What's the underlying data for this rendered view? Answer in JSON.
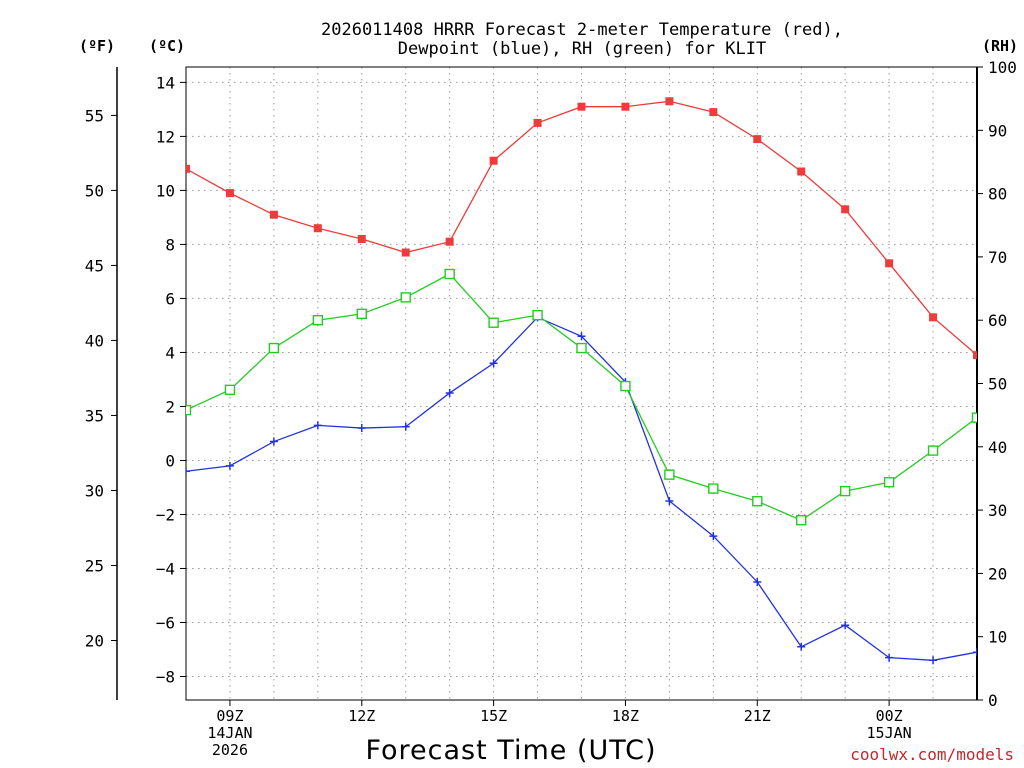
{
  "chart_data": {
    "type": "line",
    "title_line1": "2026011408 HRRR Forecast 2-meter Temperature (red),",
    "title_line2": "Dewpoint (blue), RH (green) for KLIT",
    "unit_f": "(ºF)",
    "unit_c": "(ºC)",
    "unit_rh": "(RH)",
    "xlabel": "Forecast Time (UTC)",
    "credit": "coolwx.com/models",
    "x_hours": [
      8,
      9,
      10,
      11,
      12,
      13,
      14,
      15,
      16,
      17,
      18,
      19,
      20,
      21,
      22,
      23,
      24,
      25,
      26
    ],
    "x_ticks": [
      {
        "hour": 9,
        "lines": [
          "09Z",
          "14JAN",
          "2026"
        ]
      },
      {
        "hour": 12,
        "lines": [
          "12Z"
        ]
      },
      {
        "hour": 15,
        "lines": [
          "15Z"
        ]
      },
      {
        "hour": 18,
        "lines": [
          "18Z"
        ]
      },
      {
        "hour": 21,
        "lines": [
          "21Z"
        ]
      },
      {
        "hour": 24,
        "lines": [
          "00Z",
          "15JAN"
        ]
      }
    ],
    "xlim": [
      8,
      26
    ],
    "celsius_ylim": [
      -8.5,
      14.2
    ],
    "celsius_ticks": [
      -8,
      -6,
      -4,
      -2,
      0,
      2,
      4,
      6,
      8,
      10,
      12,
      14
    ],
    "fahrenheit_ticks": [
      20,
      25,
      30,
      35,
      40,
      45,
      50,
      55
    ],
    "rh_ylim": [
      0,
      100
    ],
    "rh_ticks": [
      0,
      10,
      20,
      30,
      40,
      50,
      60,
      70,
      80,
      90,
      100
    ],
    "series": [
      {
        "name": "Temperature",
        "axis": "celsius",
        "color": "#ee3b3b",
        "marker": "filled-square",
        "values": [
          10.8,
          9.9,
          9.1,
          8.6,
          8.2,
          7.7,
          8.1,
          11.1,
          12.5,
          13.1,
          13.1,
          13.3,
          12.9,
          11.9,
          10.7,
          9.3,
          7.3,
          5.3,
          3.9
        ]
      },
      {
        "name": "Dewpoint",
        "axis": "celsius",
        "color": "#2233dd",
        "marker": "plus",
        "values": [
          -0.4,
          -0.2,
          0.7,
          1.3,
          1.2,
          1.25,
          2.5,
          3.6,
          5.3,
          4.6,
          2.9,
          -1.5,
          -2.8,
          -4.5,
          -6.9,
          -6.1,
          -7.3,
          -7.4,
          -7.1
        ]
      },
      {
        "name": "RH",
        "axis": "rh",
        "color": "#22cc22",
        "marker": "open-square",
        "values": [
          45.8,
          49.0,
          55.6,
          60.0,
          61.0,
          63.6,
          67.3,
          59.6,
          60.8,
          55.6,
          49.6,
          35.6,
          33.4,
          31.4,
          28.4,
          33.0,
          34.4,
          39.4,
          44.6
        ]
      }
    ]
  }
}
